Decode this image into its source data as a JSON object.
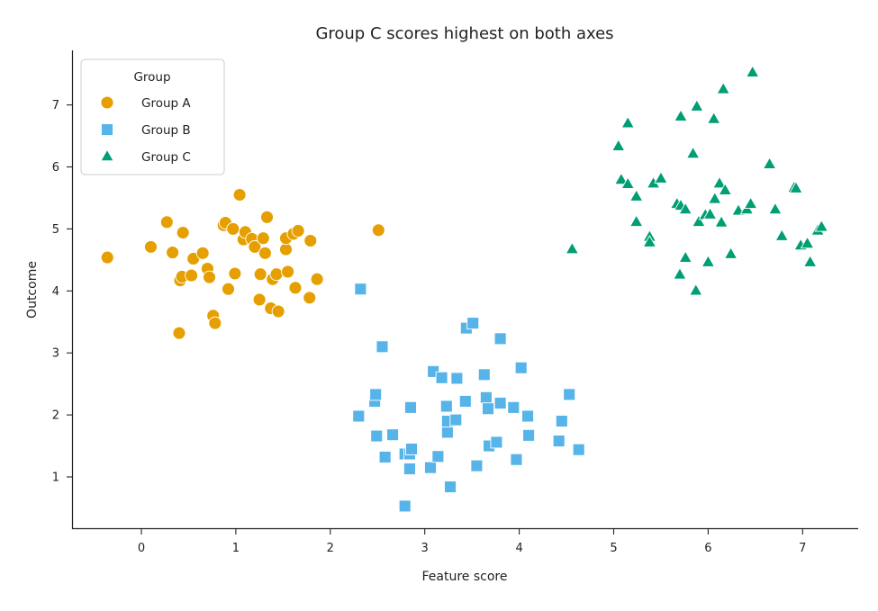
{
  "chart_data": {
    "type": "scatter",
    "title": "Group C scores highest on both axes",
    "xlabel": "Feature score",
    "ylabel": "Outcome",
    "xlim": [
      -0.75,
      7.55
    ],
    "ylim": [
      0.15,
      7.85
    ],
    "x_ticks": [
      "0",
      "1",
      "2",
      "3",
      "4",
      "5",
      "6",
      "7"
    ],
    "y_ticks": [
      "1",
      "2",
      "3",
      "4",
      "5",
      "6",
      "7"
    ],
    "grid": false,
    "legend": {
      "title": "Group",
      "position": "top-left"
    },
    "series": [
      {
        "name": "Group A",
        "marker": "circle",
        "color": "#E69F00",
        "points": [
          [
            -0.36,
            4.54
          ],
          [
            0.1,
            4.71
          ],
          [
            0.27,
            5.11
          ],
          [
            0.33,
            4.62
          ],
          [
            0.4,
            3.32
          ],
          [
            0.41,
            4.17
          ],
          [
            0.43,
            4.23
          ],
          [
            0.44,
            4.94
          ],
          [
            0.53,
            4.25
          ],
          [
            0.55,
            4.52
          ],
          [
            0.65,
            4.61
          ],
          [
            0.7,
            4.36
          ],
          [
            0.72,
            4.22
          ],
          [
            0.76,
            3.6
          ],
          [
            0.78,
            3.48
          ],
          [
            0.87,
            5.06
          ],
          [
            0.89,
            5.1
          ],
          [
            0.92,
            4.03
          ],
          [
            0.97,
            5.0
          ],
          [
            0.99,
            4.28
          ],
          [
            1.04,
            5.55
          ],
          [
            1.08,
            4.83
          ],
          [
            1.1,
            4.95
          ],
          [
            1.17,
            4.84
          ],
          [
            1.2,
            4.71
          ],
          [
            1.25,
            3.86
          ],
          [
            1.26,
            4.27
          ],
          [
            1.29,
            4.85
          ],
          [
            1.31,
            4.61
          ],
          [
            1.33,
            5.19
          ],
          [
            1.37,
            3.72
          ],
          [
            1.39,
            4.19
          ],
          [
            1.43,
            4.27
          ],
          [
            1.45,
            3.67
          ],
          [
            1.53,
            4.67
          ],
          [
            1.53,
            4.85
          ],
          [
            1.55,
            4.31
          ],
          [
            1.61,
            4.92
          ],
          [
            1.63,
            4.05
          ],
          [
            1.66,
            4.97
          ],
          [
            1.78,
            3.89
          ],
          [
            1.79,
            4.81
          ],
          [
            1.86,
            4.19
          ],
          [
            2.51,
            4.98
          ]
        ]
      },
      {
        "name": "Group B",
        "marker": "square",
        "color": "#56B4E9",
        "points": [
          [
            2.3,
            1.98
          ],
          [
            2.32,
            4.03
          ],
          [
            2.47,
            2.22
          ],
          [
            2.48,
            2.33
          ],
          [
            2.49,
            1.66
          ],
          [
            2.55,
            3.1
          ],
          [
            2.58,
            1.32
          ],
          [
            2.66,
            1.68
          ],
          [
            2.79,
            0.53
          ],
          [
            2.79,
            1.37
          ],
          [
            2.84,
            1.37
          ],
          [
            2.84,
            1.13
          ],
          [
            2.85,
            2.12
          ],
          [
            2.86,
            1.45
          ],
          [
            3.06,
            1.15
          ],
          [
            3.09,
            2.7
          ],
          [
            3.14,
            1.33
          ],
          [
            3.18,
            2.6
          ],
          [
            3.23,
            2.14
          ],
          [
            3.24,
            1.72
          ],
          [
            3.24,
            1.9
          ],
          [
            3.27,
            0.84
          ],
          [
            3.33,
            1.92
          ],
          [
            3.34,
            2.59
          ],
          [
            3.43,
            2.22
          ],
          [
            3.44,
            3.4
          ],
          [
            3.51,
            3.48
          ],
          [
            3.55,
            1.18
          ],
          [
            3.63,
            2.65
          ],
          [
            3.65,
            2.28
          ],
          [
            3.67,
            2.1
          ],
          [
            3.68,
            1.5
          ],
          [
            3.76,
            1.56
          ],
          [
            3.8,
            2.19
          ],
          [
            3.8,
            3.23
          ],
          [
            3.94,
            2.12
          ],
          [
            3.97,
            1.28
          ],
          [
            4.02,
            2.76
          ],
          [
            4.09,
            1.98
          ],
          [
            4.1,
            1.67
          ],
          [
            4.42,
            1.58
          ],
          [
            4.45,
            1.9
          ],
          [
            4.53,
            2.33
          ],
          [
            4.63,
            1.44
          ]
        ]
      },
      {
        "name": "Group C",
        "marker": "triangle",
        "color": "#009E73",
        "points": [
          [
            4.56,
            4.67
          ],
          [
            5.05,
            6.33
          ],
          [
            5.08,
            5.79
          ],
          [
            5.15,
            6.7
          ],
          [
            5.15,
            5.72
          ],
          [
            5.24,
            5.11
          ],
          [
            5.24,
            5.52
          ],
          [
            5.38,
            4.87
          ],
          [
            5.38,
            4.78
          ],
          [
            5.42,
            5.73
          ],
          [
            5.5,
            5.81
          ],
          [
            5.67,
            5.4
          ],
          [
            5.7,
            4.26
          ],
          [
            5.71,
            5.37
          ],
          [
            5.71,
            6.81
          ],
          [
            5.76,
            4.53
          ],
          [
            5.76,
            5.31
          ],
          [
            5.84,
            6.21
          ],
          [
            5.87,
            4.0
          ],
          [
            5.88,
            6.97
          ],
          [
            5.9,
            5.11
          ],
          [
            5.97,
            5.22
          ],
          [
            6.0,
            4.46
          ],
          [
            6.02,
            5.23
          ],
          [
            6.06,
            6.77
          ],
          [
            6.07,
            5.48
          ],
          [
            6.12,
            5.73
          ],
          [
            6.14,
            5.1
          ],
          [
            6.16,
            7.25
          ],
          [
            6.18,
            5.62
          ],
          [
            6.24,
            4.59
          ],
          [
            6.32,
            5.29
          ],
          [
            6.41,
            5.31
          ],
          [
            6.45,
            5.4
          ],
          [
            6.47,
            7.52
          ],
          [
            6.65,
            6.04
          ],
          [
            6.71,
            5.31
          ],
          [
            6.78,
            4.88
          ],
          [
            6.91,
            5.66
          ],
          [
            6.93,
            5.65
          ],
          [
            6.98,
            4.73
          ],
          [
            7.05,
            4.76
          ],
          [
            7.08,
            4.46
          ],
          [
            7.16,
            4.97
          ],
          [
            7.2,
            5.03
          ]
        ]
      }
    ]
  }
}
